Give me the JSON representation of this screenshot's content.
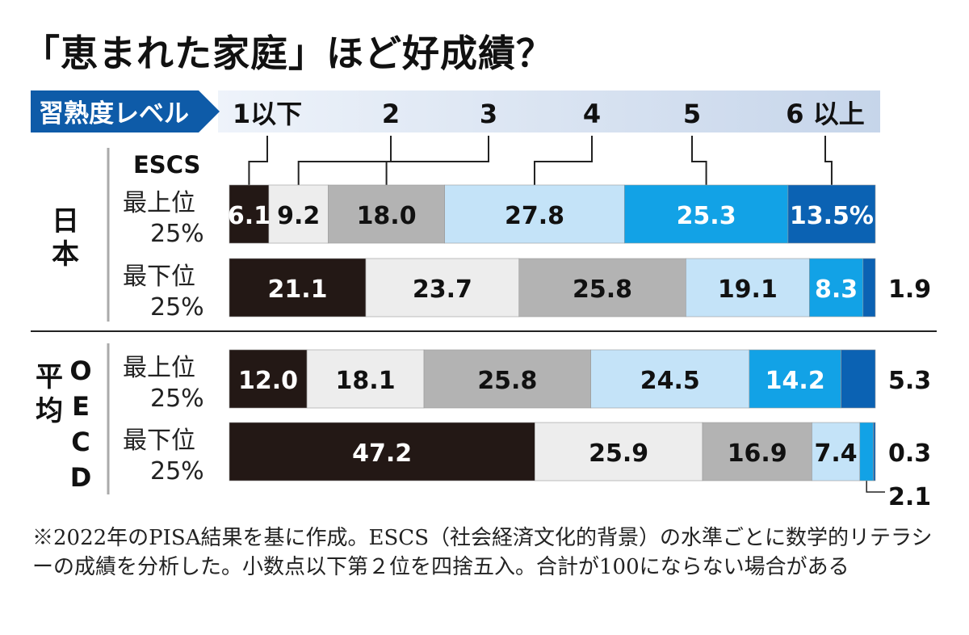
{
  "title": "「恵まれた家庭」ほど好成績？",
  "legend": {
    "header": "習熟度レベル",
    "levels": [
      "1以下",
      "2",
      "3",
      "4",
      "5",
      "6 以上"
    ],
    "colors": [
      "#231815",
      "#ededed",
      "#b3b3b3",
      "#c4e3f8",
      "#12a2e6",
      "#0b62b3"
    ]
  },
  "chart_data": {
    "type": "bar",
    "orientation": "horizontal",
    "stacked": true,
    "title": "「恵まれた家庭」ほど好成績？",
    "categories_header": "ESCS",
    "series_names": [
      "1以下",
      "2",
      "3",
      "4",
      "5",
      "6 以上"
    ],
    "groups": [
      {
        "name": "日本",
        "rows": [
          {
            "label_line1": "最上位",
            "label_line2": "25%",
            "values": [
              6.1,
              9.2,
              18.0,
              27.8,
              25.3,
              13.5
            ],
            "labels": [
              "6.1",
              "9.2",
              "18.0",
              "27.8",
              "25.3",
              "13.5%"
            ]
          },
          {
            "label_line1": "最下位",
            "label_line2": "25%",
            "values": [
              21.1,
              23.7,
              25.8,
              19.1,
              8.3,
              1.9
            ],
            "labels": [
              "21.1",
              "23.7",
              "25.8",
              "19.1",
              "8.3",
              "1.9"
            ]
          }
        ]
      },
      {
        "name": "OECD平均",
        "rows": [
          {
            "label_line1": "最上位",
            "label_line2": "25%",
            "values": [
              12.0,
              18.1,
              25.8,
              24.5,
              14.2,
              5.3
            ],
            "labels": [
              "12.0",
              "18.1",
              "25.8",
              "24.5",
              "14.2",
              "5.3"
            ]
          },
          {
            "label_line1": "最下位",
            "label_line2": "25%",
            "values": [
              47.2,
              25.9,
              16.9,
              7.4,
              2.1,
              0.3
            ],
            "labels": [
              "47.2",
              "25.9",
              "16.9",
              "7.4",
              "2.1",
              "0.3"
            ]
          }
        ]
      }
    ]
  },
  "group_labels": {
    "japan": "日本",
    "oecd_vertical": "OECD",
    "oecd_avg": "平均"
  },
  "note": "※2022年のPISA結果を基に作成。ESCS（社会経済文化的背景）の水準ごとに数学的リテラシーの成績を分析した。小数点以下第２位を四捨五入。合計が100にならない場合がある"
}
